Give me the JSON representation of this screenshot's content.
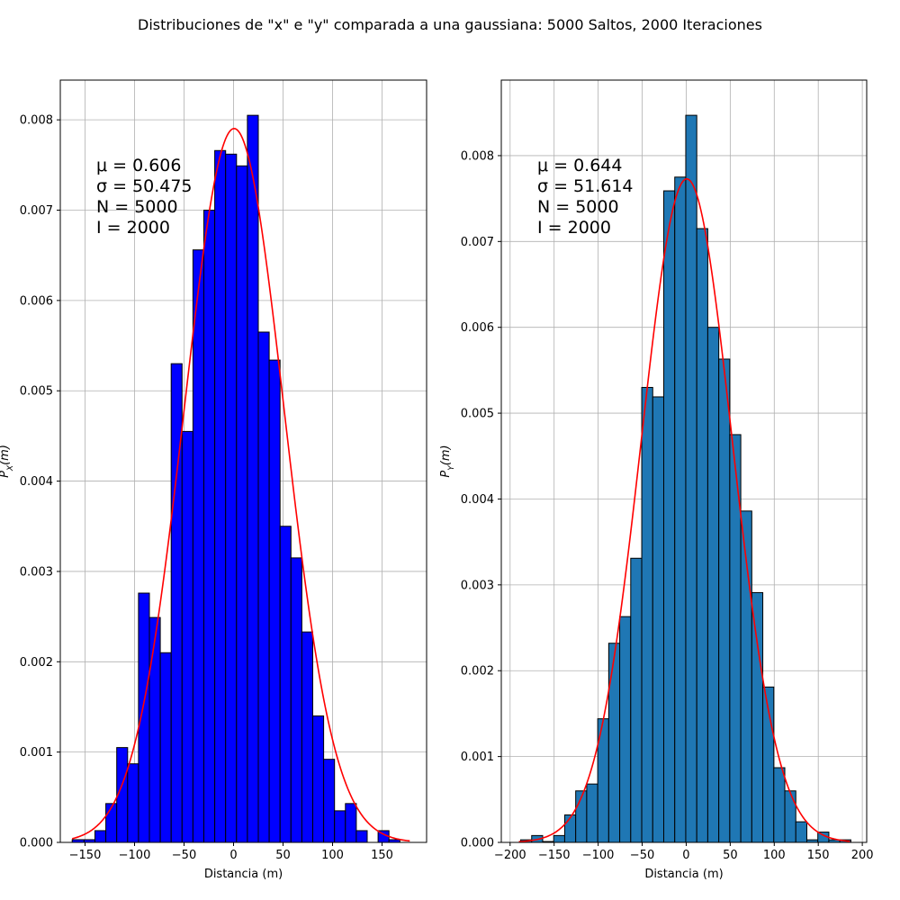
{
  "figure": {
    "title": "Distribuciones de \"x\" e \"y\" comparada a una gaussiana: 5000 Saltos, 2000 Iteraciones"
  },
  "chart_data": [
    {
      "type": "bar",
      "subtype": "histogram",
      "title": "",
      "xlabel": "Distancia (m)",
      "ylabel": "P_X(m)",
      "xlim": [
        -175,
        195
      ],
      "ylim": [
        0,
        0.00844
      ],
      "xticks": [
        -150,
        -100,
        -50,
        0,
        50,
        100,
        150
      ],
      "yticks": [
        0.0,
        0.001,
        0.002,
        0.003,
        0.004,
        0.005,
        0.006,
        0.007,
        0.008
      ],
      "ytick_labels": [
        "0.000",
        "0.001",
        "0.002",
        "0.003",
        "0.004",
        "0.005",
        "0.006",
        "0.007",
        "0.008"
      ],
      "grid": true,
      "bar_color": "#0000ff",
      "edge_color": "#000000",
      "curve_color": "#ff0000",
      "bin_edges": [
        -163,
        -151,
        -140,
        -129,
        -118,
        -107,
        -96,
        -85,
        -74,
        -63,
        -52,
        -41,
        -30,
        -19,
        -8,
        3,
        14,
        25,
        36,
        47,
        58,
        69,
        80,
        91,
        102,
        113,
        124,
        135,
        146,
        157,
        168,
        179
      ],
      "values": [
        3e-05,
        3e-05,
        0.00013,
        0.00043,
        0.00105,
        0.00087,
        0.00276,
        0.00249,
        0.0021,
        0.0053,
        0.00455,
        0.00656,
        0.007,
        0.00766,
        0.00762,
        0.00749,
        0.00805,
        0.00565,
        0.00534,
        0.0035,
        0.00315,
        0.00233,
        0.0014,
        0.00092,
        0.00035,
        0.00043,
        0.00013,
        0.0,
        0.00013,
        3e-05,
        0.0
      ],
      "gaussian": {
        "mu": 0.606,
        "sigma": 50.475,
        "x_range": [
          -163,
          178
        ]
      },
      "annotation": {
        "mu_label": "μ = 0.606",
        "sigma_label": "σ = 50.475",
        "n_label": "N = 5000",
        "i_label": "I = 2000"
      }
    },
    {
      "type": "bar",
      "subtype": "histogram",
      "title": "",
      "xlabel": "Distancia (m)",
      "ylabel": "P_Y(m)",
      "xlim": [
        -210,
        205
      ],
      "ylim": [
        0,
        0.00888
      ],
      "xticks": [
        -200,
        -150,
        -100,
        -50,
        0,
        50,
        100,
        150,
        200
      ],
      "yticks": [
        0.0,
        0.001,
        0.002,
        0.003,
        0.004,
        0.005,
        0.006,
        0.007,
        0.008
      ],
      "ytick_labels": [
        "0.000",
        "0.001",
        "0.002",
        "0.003",
        "0.004",
        "0.005",
        "0.006",
        "0.007",
        "0.008"
      ],
      "grid": true,
      "bar_color": "#1f77b4",
      "edge_color": "#000000",
      "curve_color": "#ff0000",
      "bin_edges": [
        -188,
        -175.5,
        -163,
        -150.5,
        -138,
        -125.5,
        -113,
        -100.5,
        -88,
        -75.5,
        -63,
        -50.5,
        -38,
        -25.5,
        -13,
        -0.5,
        12,
        24.5,
        37,
        49.5,
        62,
        74.5,
        87,
        99.5,
        112,
        124.5,
        137,
        149.5,
        162,
        174.5,
        187
      ],
      "values": [
        3e-05,
        8e-05,
        1e-05,
        8e-05,
        0.00032,
        0.0006,
        0.00068,
        0.00144,
        0.00232,
        0.00263,
        0.00331,
        0.0053,
        0.00519,
        0.00759,
        0.00775,
        0.00847,
        0.00715,
        0.006,
        0.00563,
        0.00475,
        0.00386,
        0.00291,
        0.00181,
        0.00087,
        0.0006,
        0.00024,
        3e-05,
        0.00012,
        3e-05,
        3e-05
      ],
      "gaussian": {
        "mu": 0.644,
        "sigma": 51.614,
        "x_range": [
          -190,
          186
        ]
      },
      "annotation": {
        "mu_label": "μ = 0.644",
        "sigma_label": "σ = 51.614",
        "n_label": "N = 5000",
        "i_label": "I = 2000"
      }
    }
  ]
}
